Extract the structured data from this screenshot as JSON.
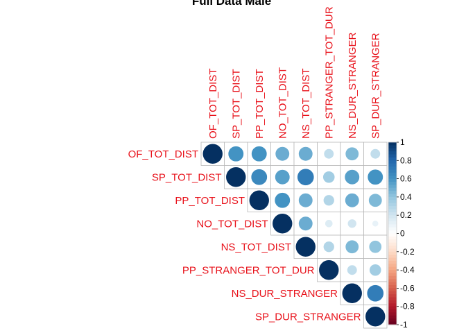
{
  "chart_data": {
    "type": "heatmap",
    "subtype": "correlation-matrix-upper-circles",
    "title": "Full Data Male",
    "variables": [
      "OF_TOT_DIST",
      "SP_TOT_DIST",
      "PP_TOT_DIST",
      "NO_TOT_DIST",
      "NS_TOT_DIST",
      "PP_STRANGER_TOT_DUR",
      "NS_DUR_STRANGER",
      "SP_DUR_STRANGER"
    ],
    "matrix": [
      [
        1.0,
        0.6,
        0.6,
        0.5,
        0.5,
        0.25,
        0.45,
        0.25
      ],
      [
        0.6,
        1.0,
        0.65,
        0.55,
        0.7,
        0.35,
        0.55,
        0.6
      ],
      [
        0.6,
        0.65,
        1.0,
        0.6,
        0.5,
        0.3,
        0.5,
        0.45
      ],
      [
        0.5,
        0.55,
        0.6,
        1.0,
        0.5,
        0.15,
        0.2,
        0.1
      ],
      [
        0.5,
        0.7,
        0.5,
        0.5,
        1.0,
        0.3,
        0.45,
        0.4
      ],
      [
        0.25,
        0.35,
        0.3,
        0.15,
        0.3,
        1.0,
        0.25,
        0.35
      ],
      [
        0.45,
        0.55,
        0.5,
        0.2,
        0.45,
        0.25,
        1.0,
        0.7
      ],
      [
        0.25,
        0.6,
        0.45,
        0.1,
        0.4,
        0.35,
        0.7,
        1.0
      ]
    ],
    "display": "upper",
    "method": "circle",
    "label_color": "#e8111a",
    "grid_color": "#b8b8b8",
    "color_scale": {
      "low": "#67001f",
      "mid": "#ffffff",
      "high": "#053061",
      "range": [
        -1,
        1
      ]
    },
    "legend": {
      "position": "right",
      "ticks": [
        "1",
        "0.8",
        "0.6",
        "0.4",
        "0.2",
        "0",
        "-0.2",
        "-0.4",
        "-0.6",
        "-0.8",
        "-1"
      ]
    }
  }
}
